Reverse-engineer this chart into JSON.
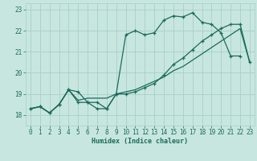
{
  "xlabel": "Humidex (Indice chaleur)",
  "xlim": [
    -0.5,
    23.5
  ],
  "ylim": [
    17.5,
    23.3
  ],
  "xticks": [
    0,
    1,
    2,
    3,
    4,
    5,
    6,
    7,
    8,
    9,
    10,
    11,
    12,
    13,
    14,
    15,
    16,
    17,
    18,
    19,
    20,
    21,
    22,
    23
  ],
  "yticks": [
    18,
    19,
    20,
    21,
    22,
    23
  ],
  "bg_color": "#c8e6e0",
  "grid_color": "#a8cfc8",
  "line_color": "#1a6b5a",
  "line1_x": [
    0,
    1,
    2,
    3,
    4,
    5,
    6,
    7,
    8,
    9,
    10,
    11,
    12,
    13,
    14,
    15,
    16,
    17,
    18,
    19,
    20,
    21,
    22
  ],
  "line1_y": [
    18.3,
    18.4,
    18.1,
    18.5,
    19.2,
    19.1,
    18.6,
    18.3,
    18.3,
    19.0,
    21.8,
    22.0,
    21.8,
    21.9,
    22.5,
    22.7,
    22.65,
    22.85,
    22.4,
    22.3,
    21.9,
    20.8,
    20.8
  ],
  "line2_x": [
    0,
    1,
    2,
    3,
    4,
    5,
    6,
    7,
    8,
    9,
    10,
    11,
    12,
    13,
    14,
    15,
    16,
    17,
    18,
    19,
    20,
    21,
    22,
    23
  ],
  "line2_y": [
    18.3,
    18.4,
    18.1,
    18.5,
    19.2,
    18.6,
    18.6,
    18.6,
    18.3,
    19.0,
    19.0,
    19.1,
    19.3,
    19.5,
    19.9,
    20.4,
    20.7,
    21.1,
    21.5,
    21.8,
    22.1,
    22.3,
    22.3,
    20.5
  ],
  "line3_x": [
    0,
    1,
    2,
    3,
    4,
    5,
    6,
    7,
    8,
    9,
    10,
    11,
    12,
    13,
    14,
    15,
    16,
    17,
    18,
    19,
    20,
    21,
    22,
    23
  ],
  "line3_y": [
    18.3,
    18.4,
    18.1,
    18.5,
    19.2,
    18.7,
    18.8,
    18.8,
    18.8,
    19.0,
    19.1,
    19.2,
    19.4,
    19.6,
    19.8,
    20.1,
    20.3,
    20.6,
    20.9,
    21.2,
    21.5,
    21.8,
    22.1,
    20.5
  ]
}
